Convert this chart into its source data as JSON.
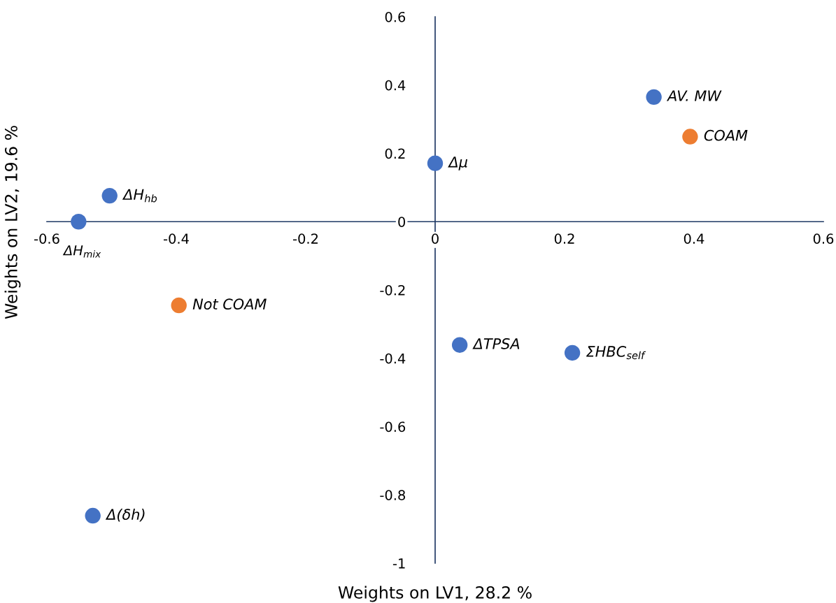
{
  "chart_data": {
    "type": "scatter",
    "xlabel": "Weights on LV1, 28.2 %",
    "ylabel": "Weights on LV2, 19.6 %",
    "xlim": [
      -0.6,
      0.6
    ],
    "xticks": [
      -0.6,
      -0.4,
      -0.2,
      0,
      0.2,
      0.4,
      0.6
    ],
    "ylim": [
      -1,
      0.6
    ],
    "yticks": [
      -1,
      -0.8,
      -0.6,
      -0.4,
      -0.2,
      0,
      0.2,
      0.4,
      0.6
    ],
    "grid": false,
    "legend": false,
    "marker": "circle",
    "series": [
      {
        "color": "#4472c4",
        "x": [
          0.338,
          0,
          -0.503,
          -0.551,
          0.038,
          0.212,
          -0.529
        ],
        "values": [
          0.365,
          0.171,
          0.076,
          0,
          -0.361,
          -0.384,
          -0.861
        ]
      },
      {
        "color": "#ed7d31",
        "x": [
          0.394,
          -0.396
        ],
        "values": [
          0.249,
          -0.245
        ]
      }
    ],
    "annotations": [
      {
        "text": "AV. MW",
        "x": 0.338,
        "y": 0.365
      },
      {
        "text": "Δμ",
        "x": 0,
        "y": 0.171
      },
      {
        "text": "ΔH$_{hb}$",
        "x": -0.503,
        "y": 0.076
      },
      {
        "text": "ΔH$_{mix}$",
        "x": -0.551,
        "y": 0
      },
      {
        "text": "ΔTPSA",
        "x": 0.038,
        "y": -0.361
      },
      {
        "text": "ΣHBC$_{self}$",
        "x": 0.212,
        "y": -0.384
      },
      {
        "text": "Δ(δh)",
        "x": -0.529,
        "y": -0.861
      },
      {
        "text": "COAM",
        "x": 0.394,
        "y": 0.249
      },
      {
        "text": "Not COAM",
        "x": -0.396,
        "y": -0.245
      }
    ]
  }
}
